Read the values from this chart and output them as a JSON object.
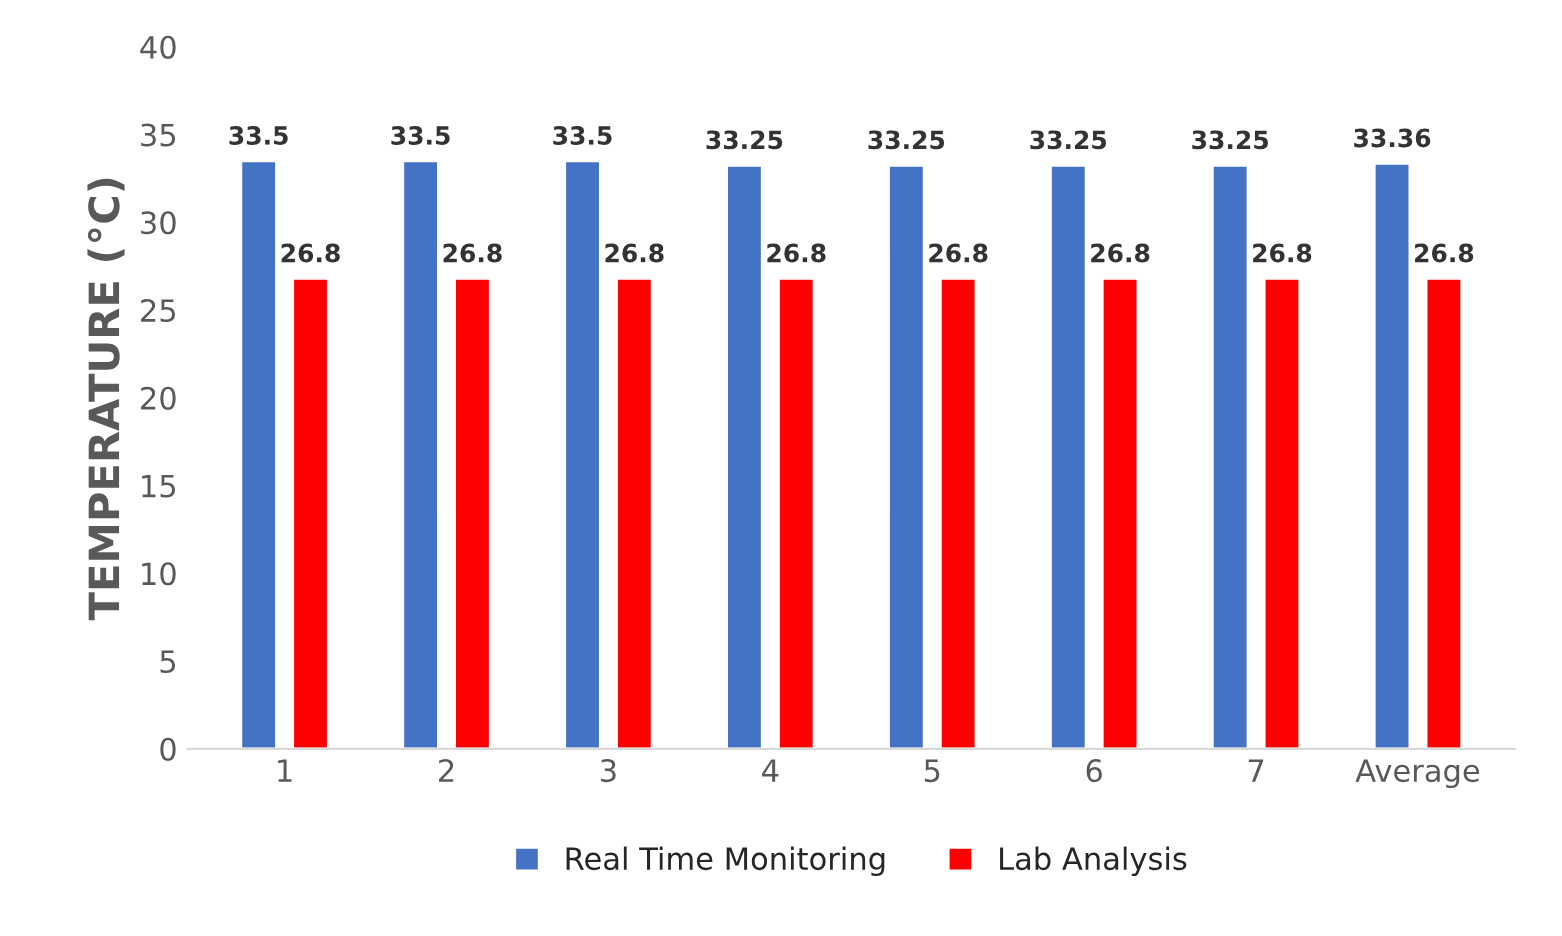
{
  "chart_data": {
    "type": "bar",
    "ylabel": "TEMPERATURE (°C)",
    "categories": [
      "1",
      "2",
      "3",
      "4",
      "5",
      "6",
      "7",
      "Average"
    ],
    "series": [
      {
        "name": "Real Time Monitoring",
        "color": "#4472c4",
        "values": [
          33.5,
          33.5,
          33.5,
          33.25,
          33.25,
          33.25,
          33.25,
          33.36
        ]
      },
      {
        "name": "Lab Analysis",
        "color": "#ff0000",
        "values": [
          26.8,
          26.8,
          26.8,
          26.8,
          26.8,
          26.8,
          26.8,
          26.8
        ]
      }
    ],
    "ylim": [
      0,
      40
    ],
    "yticks": [
      0,
      5,
      10,
      15,
      20,
      25,
      30,
      35,
      40
    ],
    "data_labels": true,
    "grid": false,
    "legend": "bottom"
  }
}
